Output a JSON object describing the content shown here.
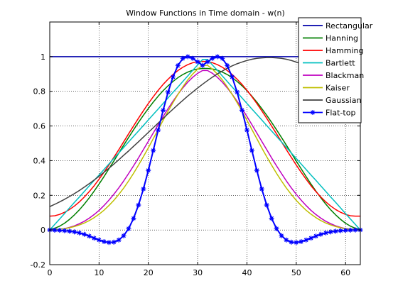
{
  "chart_data": {
    "type": "line",
    "title": "Window Functions in Time domain - w(n)",
    "xlabel": "",
    "ylabel": "",
    "xlim": [
      0,
      63
    ],
    "ylim": [
      -0.2,
      1.2
    ],
    "xticks": [
      0,
      10,
      20,
      30,
      40,
      50,
      60
    ],
    "yticks": [
      -0.2,
      0,
      0.2,
      0.4,
      0.6,
      0.8,
      1
    ],
    "ytick_labels": [
      "-0.2",
      "0",
      "0.2",
      "0.4",
      "0.6",
      "0.8",
      "1"
    ],
    "grid": true,
    "legend_position": "top-right",
    "window_length": 64,
    "x": [
      0,
      1,
      2,
      3,
      4,
      5,
      6,
      7,
      8,
      9,
      10,
      11,
      12,
      13,
      14,
      15,
      16,
      17,
      18,
      19,
      20,
      21,
      22,
      23,
      24,
      25,
      26,
      27,
      28,
      29,
      30,
      31,
      32,
      33,
      34,
      35,
      36,
      37,
      38,
      39,
      40,
      41,
      42,
      43,
      44,
      45,
      46,
      47,
      48,
      49,
      50,
      51,
      52,
      53,
      54,
      55,
      56,
      57,
      58,
      59,
      60,
      61,
      62,
      63
    ],
    "series": [
      {
        "name": "Rectangular",
        "color": "#0000aa",
        "marker": "none",
        "values": [
          1,
          1,
          1,
          1,
          1,
          1,
          1,
          1,
          1,
          1,
          1,
          1,
          1,
          1,
          1,
          1,
          1,
          1,
          1,
          1,
          1,
          1,
          1,
          1,
          1,
          1,
          1,
          1,
          1,
          1,
          1,
          1,
          1,
          1,
          1,
          1,
          1,
          1,
          1,
          1,
          1,
          1,
          1,
          1,
          1,
          1,
          1,
          1,
          1,
          1,
          1,
          1,
          1,
          1,
          1,
          1,
          1,
          1,
          1,
          1,
          1,
          1,
          1,
          1
        ]
      },
      {
        "name": "Hanning",
        "color": "#007f00",
        "marker": "none",
        "values": [
          0.002,
          0.01,
          0.022,
          0.039,
          0.061,
          0.087,
          0.116,
          0.149,
          0.185,
          0.224,
          0.265,
          0.308,
          0.353,
          0.398,
          0.444,
          0.489,
          0.534,
          0.578,
          0.621,
          0.662,
          0.701,
          0.738,
          0.772,
          0.804,
          0.832,
          0.857,
          0.879,
          0.897,
          0.911,
          0.922,
          0.929,
          0.932,
          0.932,
          0.929,
          0.922,
          0.911,
          0.897,
          0.879,
          0.857,
          0.832,
          0.804,
          0.772,
          0.738,
          0.701,
          0.662,
          0.621,
          0.578,
          0.534,
          0.489,
          0.444,
          0.398,
          0.353,
          0.308,
          0.265,
          0.224,
          0.185,
          0.149,
          0.116,
          0.087,
          0.061,
          0.039,
          0.022,
          0.01,
          0.002
        ]
      },
      {
        "name": "Hamming",
        "color": "#ff0000",
        "marker": "none",
        "values": [
          0.08,
          0.082,
          0.09,
          0.102,
          0.118,
          0.138,
          0.162,
          0.19,
          0.221,
          0.255,
          0.293,
          0.333,
          0.375,
          0.419,
          0.463,
          0.509,
          0.555,
          0.6,
          0.645,
          0.688,
          0.73,
          0.769,
          0.806,
          0.84,
          0.87,
          0.897,
          0.92,
          0.939,
          0.954,
          0.965,
          0.971,
          0.973,
          0.971,
          0.965,
          0.954,
          0.939,
          0.92,
          0.897,
          0.87,
          0.84,
          0.806,
          0.769,
          0.73,
          0.688,
          0.645,
          0.6,
          0.555,
          0.509,
          0.463,
          0.419,
          0.375,
          0.333,
          0.293,
          0.255,
          0.221,
          0.19,
          0.162,
          0.138,
          0.118,
          0.102,
          0.09,
          0.082,
          0.08,
          0.08
        ]
      },
      {
        "name": "Bartlett",
        "color": "#00bfbf",
        "marker": "none",
        "values": [
          0.0,
          0.032,
          0.063,
          0.095,
          0.127,
          0.159,
          0.19,
          0.222,
          0.254,
          0.286,
          0.317,
          0.349,
          0.381,
          0.413,
          0.444,
          0.476,
          0.508,
          0.54,
          0.571,
          0.603,
          0.635,
          0.667,
          0.698,
          0.73,
          0.762,
          0.794,
          0.825,
          0.857,
          0.889,
          0.921,
          0.952,
          0.984,
          0.984,
          0.952,
          0.921,
          0.889,
          0.857,
          0.825,
          0.794,
          0.762,
          0.73,
          0.698,
          0.667,
          0.635,
          0.603,
          0.571,
          0.54,
          0.508,
          0.476,
          0.444,
          0.413,
          0.381,
          0.349,
          0.317,
          0.286,
          0.254,
          0.222,
          0.19,
          0.159,
          0.127,
          0.095,
          0.063,
          0.032,
          0.0
        ]
      },
      {
        "name": "Blackman",
        "color": "#bf00bf",
        "marker": "none",
        "values": [
          0.0,
          0.001,
          0.004,
          0.008,
          0.015,
          0.024,
          0.036,
          0.05,
          0.068,
          0.089,
          0.113,
          0.141,
          0.172,
          0.206,
          0.243,
          0.283,
          0.326,
          0.37,
          0.416,
          0.464,
          0.512,
          0.56,
          0.608,
          0.655,
          0.7,
          0.743,
          0.783,
          0.82,
          0.853,
          0.881,
          0.904,
          0.92,
          0.92,
          0.904,
          0.881,
          0.853,
          0.82,
          0.783,
          0.743,
          0.7,
          0.655,
          0.608,
          0.56,
          0.512,
          0.464,
          0.416,
          0.37,
          0.326,
          0.283,
          0.243,
          0.206,
          0.172,
          0.141,
          0.113,
          0.089,
          0.068,
          0.05,
          0.036,
          0.024,
          0.015,
          0.008,
          0.004,
          0.001,
          0.0
        ]
      },
      {
        "name": "Kaiser",
        "color": "#bfbf00",
        "marker": "none",
        "values": [
          0.0,
          0.002,
          0.004,
          0.008,
          0.013,
          0.02,
          0.029,
          0.04,
          0.054,
          0.071,
          0.091,
          0.114,
          0.141,
          0.171,
          0.205,
          0.242,
          0.283,
          0.327,
          0.374,
          0.423,
          0.474,
          0.527,
          0.58,
          0.633,
          0.685,
          0.735,
          0.782,
          0.826,
          0.866,
          0.9,
          0.928,
          0.95,
          0.95,
          0.928,
          0.9,
          0.866,
          0.826,
          0.782,
          0.735,
          0.685,
          0.633,
          0.58,
          0.527,
          0.474,
          0.423,
          0.374,
          0.327,
          0.283,
          0.242,
          0.205,
          0.171,
          0.141,
          0.114,
          0.091,
          0.071,
          0.054,
          0.04,
          0.029,
          0.02,
          0.013,
          0.008,
          0.004,
          0.002,
          0.0
        ]
      },
      {
        "name": "Gaussian",
        "color": "#404040",
        "marker": "none",
        "values": [
          0.135,
          0.148,
          0.162,
          0.177,
          0.193,
          0.21,
          0.228,
          0.247,
          0.267,
          0.288,
          0.31,
          0.333,
          0.356,
          0.38,
          0.405,
          0.431,
          0.456,
          0.483,
          0.509,
          0.536,
          0.563,
          0.59,
          0.617,
          0.644,
          0.671,
          0.697,
          0.723,
          0.748,
          0.773,
          0.796,
          0.819,
          0.841,
          0.862,
          0.882,
          0.9,
          0.917,
          0.933,
          0.947,
          0.959,
          0.969,
          0.978,
          0.985,
          0.99,
          0.993,
          0.995,
          0.995,
          0.993,
          0.99,
          0.985,
          0.978,
          0.969,
          0.959,
          0.947,
          0.933,
          0.917,
          0.9,
          0.882,
          0.862,
          0.841,
          0.819,
          0.796,
          0.773,
          0.748,
          0.723
        ]
      },
      {
        "name": "Flat-top",
        "color": "#0000ff",
        "marker": "asterisk",
        "values": [
          0.0,
          -0.001,
          -0.002,
          -0.004,
          -0.007,
          -0.011,
          -0.017,
          -0.025,
          -0.035,
          -0.047,
          -0.058,
          -0.067,
          -0.072,
          -0.07,
          -0.058,
          -0.033,
          0.008,
          0.067,
          0.144,
          0.237,
          0.344,
          0.459,
          0.577,
          0.691,
          0.795,
          0.883,
          0.949,
          0.99,
          1.0,
          0.99,
          0.97,
          0.95,
          0.97,
          0.99,
          1.0,
          0.99,
          0.949,
          0.883,
          0.795,
          0.691,
          0.577,
          0.459,
          0.344,
          0.237,
          0.144,
          0.067,
          0.008,
          -0.033,
          -0.058,
          -0.07,
          -0.072,
          -0.067,
          -0.058,
          -0.047,
          -0.035,
          -0.025,
          -0.017,
          -0.011,
          -0.007,
          -0.004,
          -0.002,
          -0.001,
          0.0,
          0.0
        ]
      }
    ]
  }
}
